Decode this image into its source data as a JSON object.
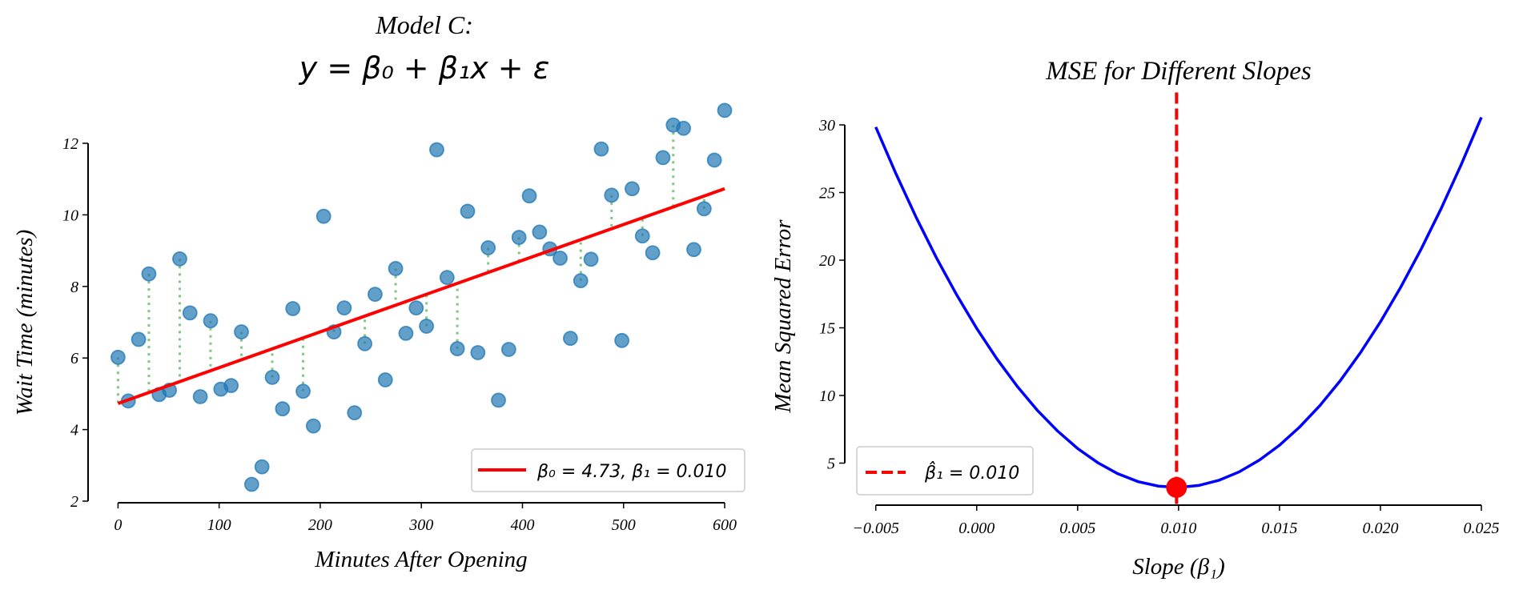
{
  "chart_data": [
    {
      "type": "scatter",
      "title": "Model C:",
      "subtitle": "y = β₀ + β₁x + ε",
      "xlabel": "Minutes After Opening",
      "ylabel": "Wait Time (minutes)",
      "xlim": [
        0,
        600
      ],
      "ylim": [
        2,
        12
      ],
      "xticks": [
        0,
        100,
        200,
        300,
        400,
        500,
        600
      ],
      "yticks": [
        2,
        4,
        6,
        8,
        10,
        12
      ],
      "grid": false,
      "legend": {
        "placement": "lower-right",
        "entries": [
          "β₀ = 4.73, β₁ = 0.010"
        ]
      },
      "points": {
        "x": [
          0,
          10.17,
          20.34,
          30.51,
          40.68,
          50.85,
          61.02,
          71.19,
          81.36,
          91.53,
          101.69,
          111.86,
          122.03,
          132.2,
          142.37,
          152.54,
          162.71,
          172.88,
          183.05,
          193.22,
          203.39,
          213.56,
          223.73,
          233.9,
          244.07,
          254.24,
          264.41,
          274.58,
          284.75,
          294.92,
          305.08,
          315.25,
          325.42,
          335.59,
          345.76,
          355.93,
          366.1,
          376.27,
          386.44,
          396.61,
          406.78,
          416.95,
          427.12,
          437.29,
          447.46,
          457.63,
          467.8,
          477.97,
          488.14,
          498.31,
          508.47,
          518.64,
          528.81,
          538.98,
          549.15,
          559.32,
          569.49,
          579.66,
          589.83,
          600
        ],
        "y": [
          6.02,
          4.8,
          6.52,
          8.35,
          4.98,
          5.1,
          8.77,
          7.26,
          4.92,
          7.04,
          5.13,
          5.23,
          6.73,
          2.47,
          2.96,
          5.46,
          4.58,
          7.38,
          5.07,
          4.1,
          9.96,
          6.73,
          7.4,
          4.47,
          6.4,
          7.78,
          5.39,
          8.5,
          6.69,
          7.4,
          6.89,
          11.82,
          8.25,
          6.26,
          10.1,
          6.15,
          9.08,
          4.82,
          6.24,
          9.37,
          10.53,
          9.52,
          9.05,
          8.79,
          6.55,
          8.16,
          8.76,
          11.84,
          10.55,
          6.49,
          10.73,
          9.41,
          8.94,
          11.6,
          12.51,
          12.42,
          9.03,
          10.17,
          11.53,
          12.92
        ],
        "color": "#1f77b4"
      },
      "fit_line": {
        "intercept": 4.73,
        "slope": 0.01,
        "x_range": [
          0,
          600
        ],
        "color": "#ff0000"
      },
      "residual_indices": [
        0,
        3,
        6,
        9,
        12,
        15,
        18,
        21,
        24,
        27,
        30,
        33,
        36,
        39,
        42,
        45,
        48,
        51,
        54,
        57
      ],
      "residual_color": "#2ca02c"
    },
    {
      "type": "line",
      "title": "MSE for Different Slopes",
      "xlabel": "Slope (β₁)",
      "ylabel": "Mean Squared Error",
      "xlim": [
        -0.005,
        0.025
      ],
      "ylim": [
        1.9,
        32.4
      ],
      "xticks": [
        -0.005,
        0,
        0.005,
        0.01,
        0.015,
        0.02,
        0.025
      ],
      "xtick_labels": [
        "−0.005",
        "0.000",
        "0.005",
        "0.010",
        "0.015",
        "0.020",
        "0.025"
      ],
      "yticks": [
        5,
        10,
        15,
        20,
        25,
        30
      ],
      "grid": false,
      "legend": {
        "placement": "lower-left",
        "entries": [
          "β̂₁ = 0.010"
        ]
      },
      "series": [
        {
          "name": "MSE",
          "color": "#0000ff",
          "x": [
            -0.005,
            -0.004,
            -0.003,
            -0.002,
            -0.001,
            0,
            0.001,
            0.002,
            0.003,
            0.004,
            0.005,
            0.006,
            0.007,
            0.008,
            0.009,
            0.01,
            0.011,
            0.012,
            0.013,
            0.014,
            0.015,
            0.016,
            0.017,
            0.018,
            0.019,
            0.02,
            0.021,
            0.022,
            0.023,
            0.024,
            0.025
          ],
          "y": [
            29.84,
            26.39,
            23.17,
            20.19,
            17.46,
            14.96,
            12.71,
            10.69,
            8.91,
            7.38,
            6.08,
            5.03,
            4.21,
            3.63,
            3.3,
            3.2,
            3.35,
            3.73,
            4.35,
            5.22,
            6.32,
            7.67,
            9.25,
            11.07,
            13.14,
            15.44,
            17.99,
            20.77,
            23.79,
            27.06,
            30.56
          ]
        }
      ],
      "optimum": {
        "x": 0.0099,
        "y": 3.2,
        "label": "β̂₁ = 0.010",
        "color": "#ff0000"
      }
    }
  ]
}
